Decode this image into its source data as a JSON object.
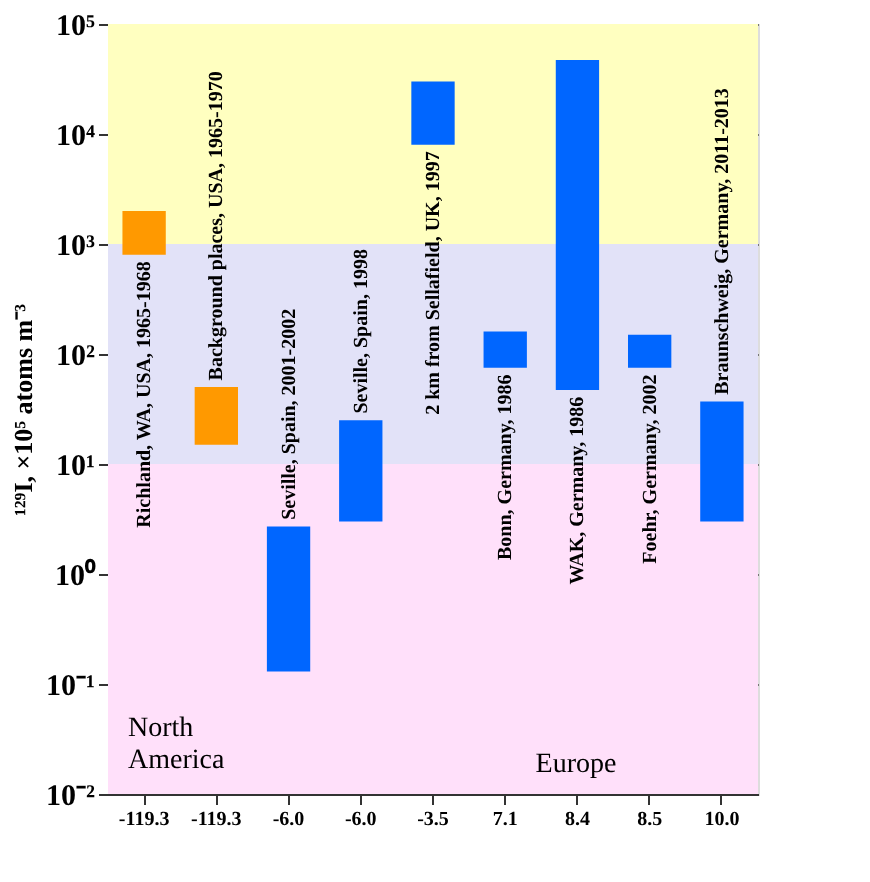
{
  "chart_data": {
    "type": "bar",
    "ylabel": "¹²⁹I, ×10⁵ atoms m⁻³",
    "categories": [
      "-119.3",
      "-119.3",
      "-6.0",
      "-6.0",
      "-3.5",
      "7.1",
      "8.4",
      "8.5",
      "10.0"
    ],
    "base": [
      800,
      15,
      0.13,
      3,
      8000,
      75,
      47,
      75,
      3
    ],
    "values": [
      1200,
      35,
      2.57,
      22,
      22000,
      85,
      46953,
      75,
      34
    ],
    "colors": [
      "#ff9900",
      "#ff9900",
      "#0066ff",
      "#0066ff",
      "#0066ff",
      "#0066ff",
      "#0066ff",
      "#0066ff",
      "#0066ff"
    ],
    "log": true,
    "ylim": [
      0.01,
      100000
    ],
    "yticks": [
      {
        "value": 0.01,
        "label": "10⁻²"
      },
      {
        "value": 0.1,
        "label": "10⁻¹"
      },
      {
        "value": 1,
        "label": "10⁰"
      },
      {
        "value": 10,
        "label": "10¹"
      },
      {
        "value": 100,
        "label": "10²"
      },
      {
        "value": 1000,
        "label": "10³"
      },
      {
        "value": 10000,
        "label": "10⁴"
      },
      {
        "value": 100000,
        "label": "10⁵"
      }
    ],
    "grid": "y",
    "bands": [
      {
        "axis": "y",
        "from": 0.01,
        "to": 10,
        "color": "#ffe0fa"
      },
      {
        "axis": "y",
        "from": 10,
        "to": 1000,
        "color": "#e2e2f8"
      },
      {
        "axis": "y",
        "from": 1000,
        "to": 100000,
        "color": "#ffffc0"
      }
    ],
    "annotations": [
      "Richland, WA, USA, 1965-1968",
      "Background places, USA, 1965-1970",
      "Seville, Spain, 2001-2002",
      "Seville, Spain, 1998",
      "2 km from Sellafield, UK, 1997",
      "Bonn, Germany, 1986",
      "WAK, Germany, 1986",
      "Foehr, Germany, 2002",
      "Braunschweig, Germany, 2011-2013",
      "North America",
      "Europe"
    ]
  }
}
